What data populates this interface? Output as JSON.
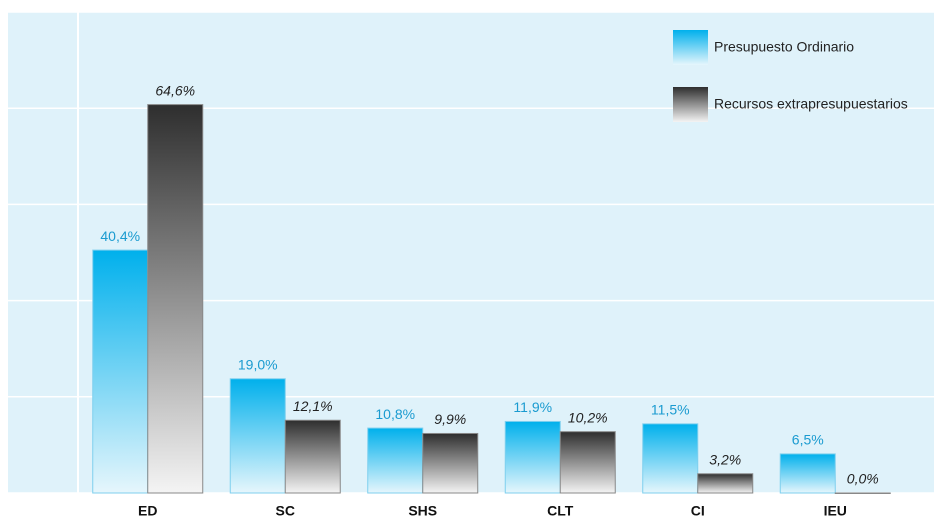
{
  "chart_data": {
    "type": "bar",
    "categories": [
      "ED",
      "SC",
      "SHS",
      "CLT",
      "CI",
      "IEU"
    ],
    "series": [
      {
        "name": "Presupuesto Ordinario",
        "color": "#00b0ec",
        "values": [
          40.4,
          19.0,
          10.8,
          11.9,
          11.5,
          6.5
        ],
        "value_labels": [
          "40,4%",
          "19,0%",
          "10,8%",
          "11,9%",
          "11,5%",
          "6,5%"
        ]
      },
      {
        "name": "Recursos extrapresupuestarios",
        "color": "#2e2e2e",
        "values": [
          64.6,
          12.1,
          9.9,
          10.2,
          3.2,
          0.0
        ],
        "value_labels": [
          "64,6%",
          "12,1%",
          "9,9%",
          "10,2%",
          "3,2%",
          "0,0%"
        ]
      }
    ],
    "ylim": [
      0,
      80
    ],
    "yticks": [
      0,
      16,
      32,
      48,
      64,
      80
    ],
    "grid": true,
    "legend": "top-right"
  }
}
